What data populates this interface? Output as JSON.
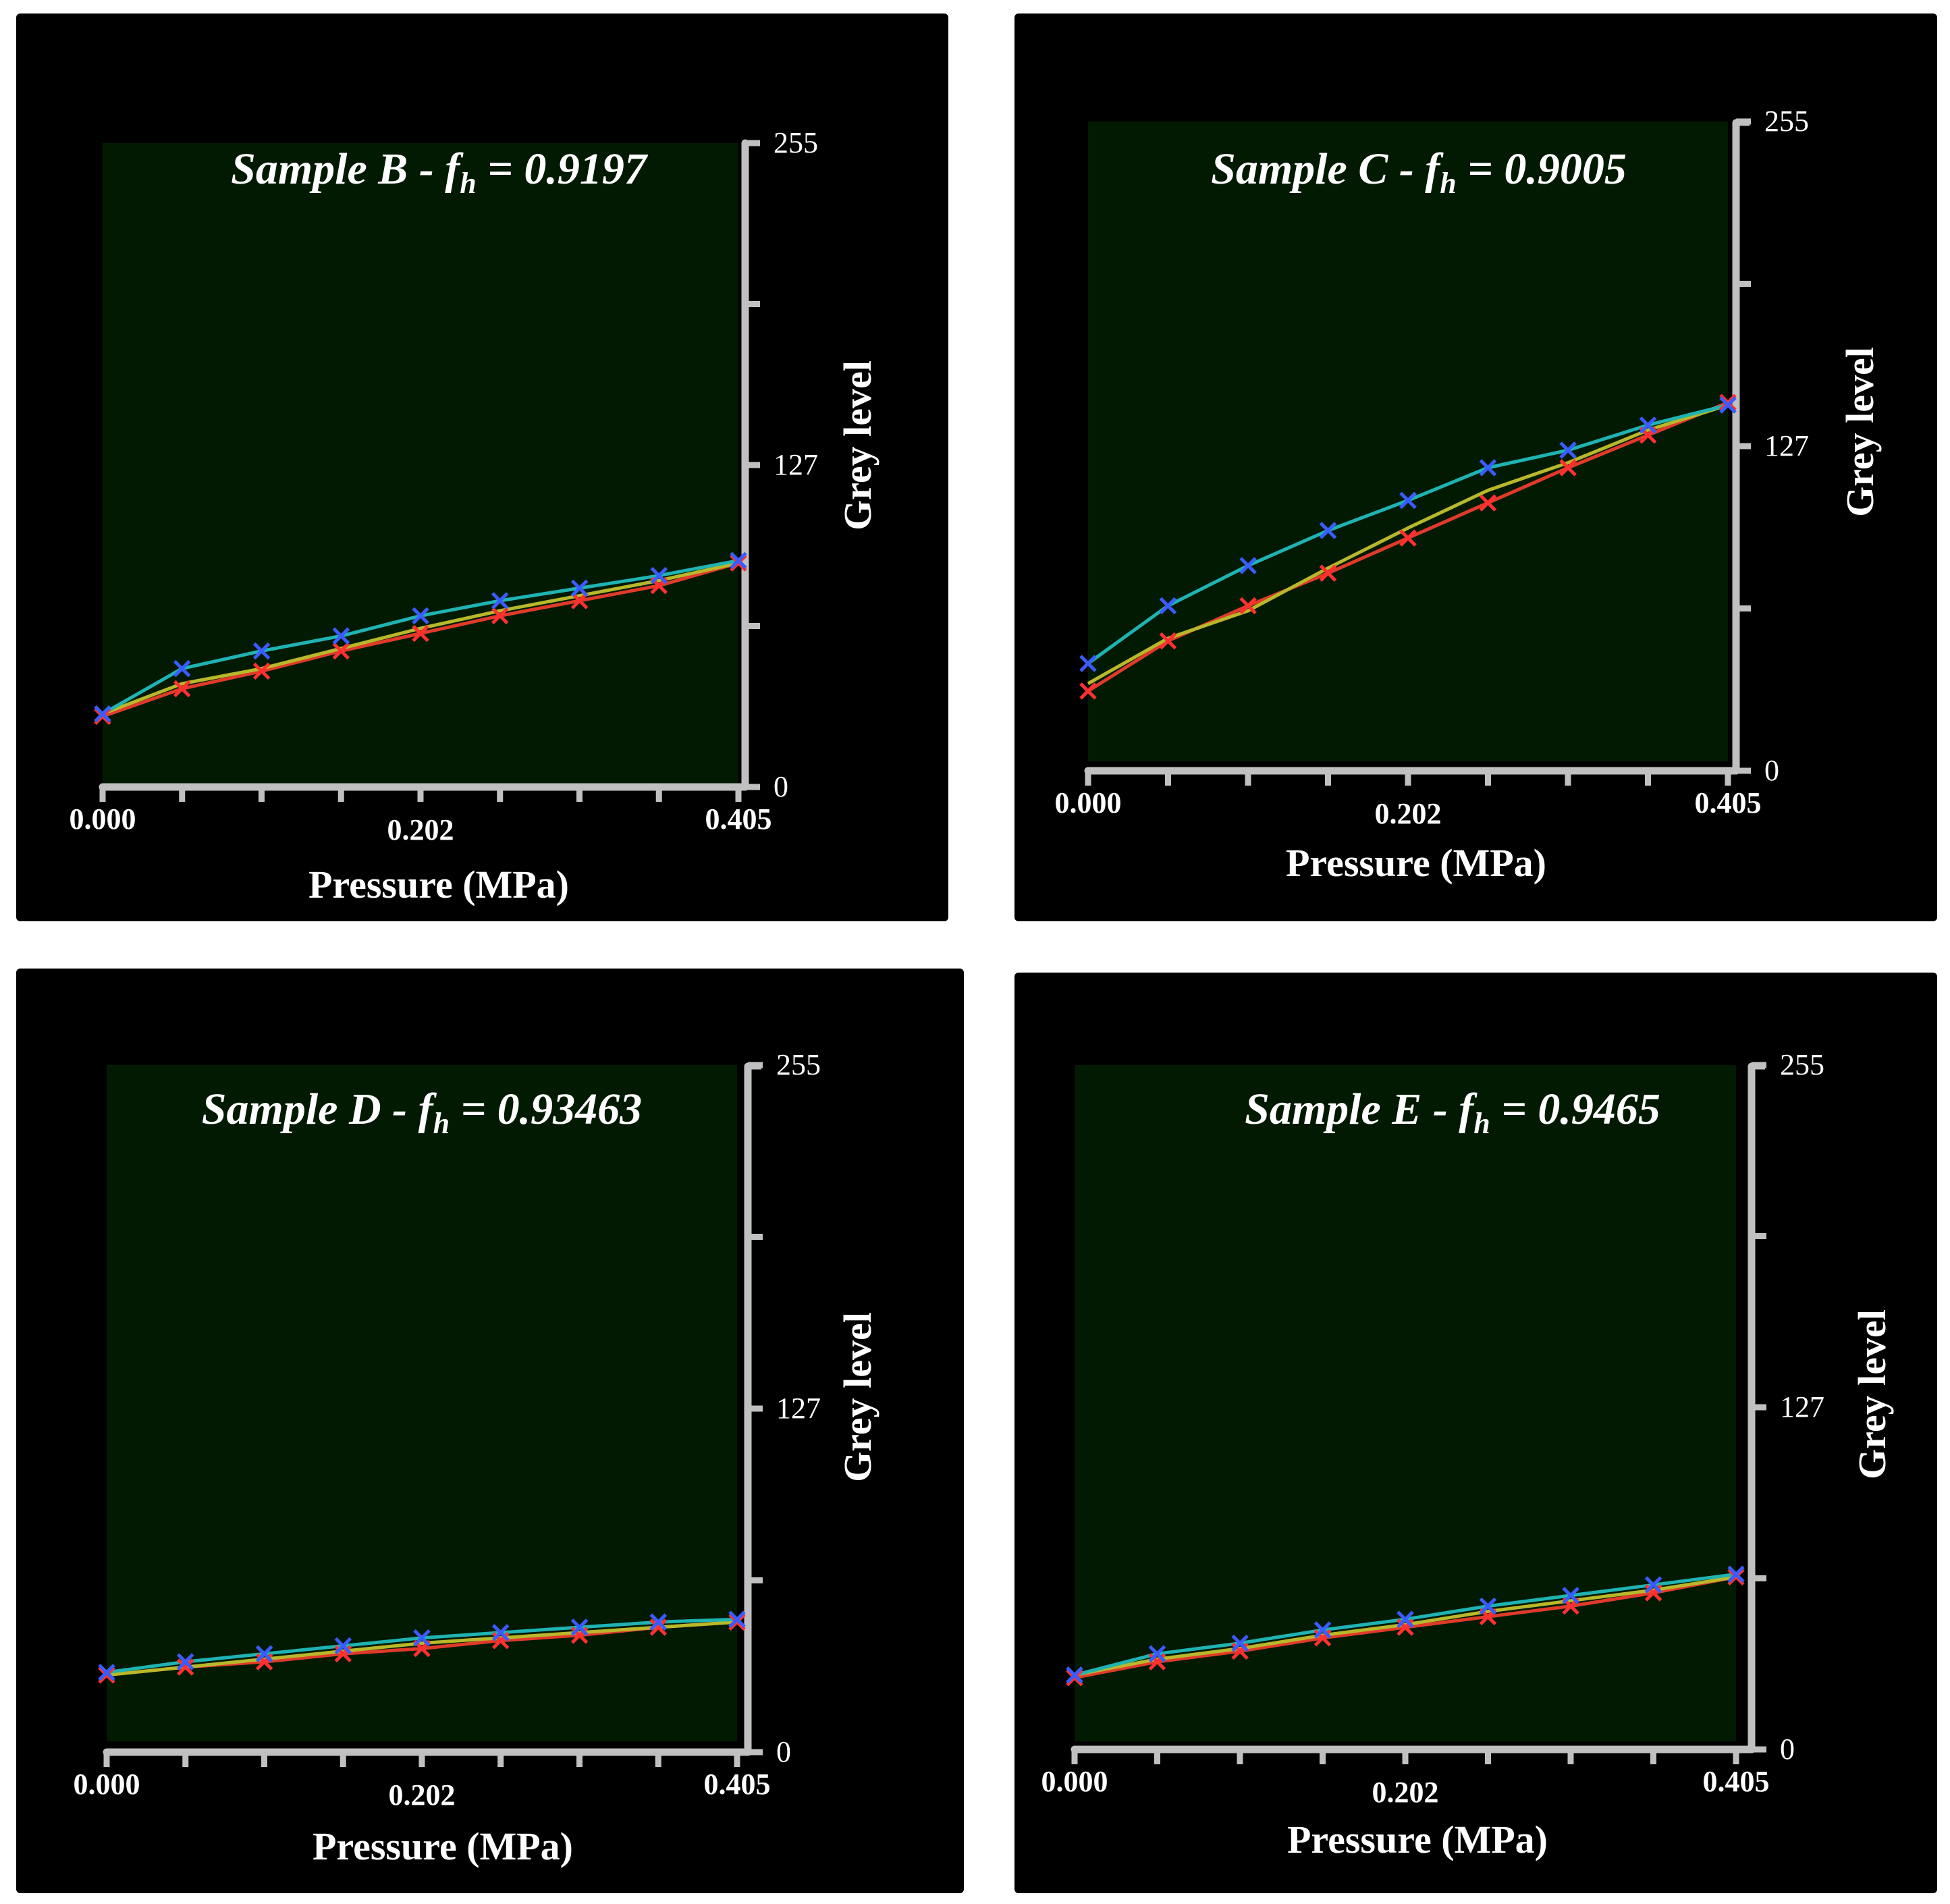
{
  "chart_data": [
    {
      "type": "line",
      "title_prefix": "Sample B - f",
      "title_sub": "h",
      "title_suffix": " = 0.9197",
      "xlabel": "Pressure (MPa)",
      "ylabel": "Grey level",
      "xlim": [
        0,
        0.405
      ],
      "ylim": [
        0,
        255
      ],
      "x_tick_labels": [
        "0.000",
        "0.202",
        "0.405"
      ],
      "y_tick_labels": [
        "0",
        "127",
        "255"
      ],
      "x": [
        0.0,
        0.0506,
        0.1013,
        0.1519,
        0.2025,
        0.2531,
        0.3038,
        0.3544,
        0.405
      ],
      "series": [
        {
          "name": "cyan",
          "color": "#1fb3b3",
          "marker": "x",
          "marker_color": "#3a5cff",
          "values": [
            28,
            46,
            53,
            59,
            67,
            73,
            78,
            83,
            89
          ]
        },
        {
          "name": "yellow",
          "color": "#b8b82a",
          "marker": "",
          "marker_color": "",
          "values": [
            28,
            40,
            46,
            54,
            62,
            69,
            75,
            81,
            88
          ]
        },
        {
          "name": "red",
          "color": "#e03a2a",
          "marker": "x",
          "marker_color": "#ff3030",
          "values": [
            27,
            38,
            45,
            53,
            60,
            67,
            73,
            79,
            88
          ]
        }
      ]
    },
    {
      "type": "line",
      "title_prefix": "Sample C - f",
      "title_sub": "h",
      "title_suffix": " = 0.9005",
      "xlabel": "Pressure (MPa)",
      "ylabel": "Grey level",
      "xlim": [
        0,
        0.405
      ],
      "ylim": [
        0,
        255
      ],
      "x_tick_labels": [
        "0.000",
        "0.202",
        "0.405"
      ],
      "y_tick_labels": [
        "0",
        "127",
        "255"
      ],
      "x": [
        0.0,
        0.0506,
        0.1013,
        0.1519,
        0.2025,
        0.2531,
        0.3038,
        0.3544,
        0.405
      ],
      "series": [
        {
          "name": "cyan",
          "color": "#1fb3b3",
          "marker": "x",
          "marker_color": "#3a5cff",
          "values": [
            39,
            62,
            78,
            92,
            104,
            117,
            124,
            134,
            142
          ]
        },
        {
          "name": "yellow",
          "color": "#b8b82a",
          "marker": "",
          "marker_color": "",
          "values": [
            31,
            49,
            60,
            77,
            93,
            108,
            119,
            132,
            142
          ]
        },
        {
          "name": "red",
          "color": "#e03a2a",
          "marker": "x",
          "marker_color": "#ff3030",
          "values": [
            28,
            48,
            62,
            75,
            89,
            103,
            117,
            130,
            143
          ]
        }
      ]
    },
    {
      "type": "line",
      "title_prefix": "Sample D - f",
      "title_sub": "h",
      "title_suffix": " = 0.93463",
      "xlabel": "Pressure (MPa)",
      "ylabel": "Grey level",
      "xlim": [
        0,
        0.405
      ],
      "ylim": [
        0,
        255
      ],
      "x_tick_labels": [
        "0.000",
        "0.202",
        "0.405"
      ],
      "y_tick_labels": [
        "0",
        "127",
        "255"
      ],
      "x": [
        0.0,
        0.0506,
        0.1013,
        0.1519,
        0.2025,
        0.2531,
        0.3038,
        0.3544,
        0.405
      ],
      "series": [
        {
          "name": "cyan",
          "color": "#1fb3b3",
          "marker": "x",
          "marker_color": "#3a5cff",
          "values": [
            26,
            30,
            33,
            36,
            39,
            41,
            43,
            45,
            46
          ]
        },
        {
          "name": "yellow",
          "color": "#b8b82a",
          "marker": "",
          "marker_color": "",
          "values": [
            25,
            28,
            31,
            34,
            37,
            39,
            41,
            43,
            45
          ]
        },
        {
          "name": "red",
          "color": "#e03a2a",
          "marker": "x",
          "marker_color": "#ff3030",
          "values": [
            25,
            28,
            30,
            33,
            35,
            38,
            40,
            43,
            45
          ]
        }
      ]
    },
    {
      "type": "line",
      "title_prefix": "Sample E - f",
      "title_sub": "h",
      "title_suffix": " = 0.9465",
      "xlabel": "Pressure (MPa)",
      "ylabel": "Grey level",
      "xlim": [
        0,
        0.405
      ],
      "ylim": [
        0,
        255
      ],
      "x_tick_labels": [
        "0.000",
        "0.202",
        "0.405"
      ],
      "y_tick_labels": [
        "0",
        "127",
        "255"
      ],
      "x": [
        0.0,
        0.0506,
        0.1013,
        0.1519,
        0.2025,
        0.2531,
        0.3038,
        0.3544,
        0.405
      ],
      "series": [
        {
          "name": "cyan",
          "color": "#1fb3b3",
          "marker": "x",
          "marker_color": "#3a5cff",
          "values": [
            25,
            33,
            37,
            42,
            46,
            51,
            55,
            59,
            63
          ]
        },
        {
          "name": "yellow",
          "color": "#b8b82a",
          "marker": "",
          "marker_color": "",
          "values": [
            25,
            31,
            35,
            40,
            44,
            49,
            53,
            57,
            62
          ]
        },
        {
          "name": "red",
          "color": "#e03a2a",
          "marker": "x",
          "marker_color": "#ff3030",
          "values": [
            24,
            30,
            34,
            39,
            43,
            47,
            51,
            56,
            62
          ]
        }
      ]
    }
  ]
}
